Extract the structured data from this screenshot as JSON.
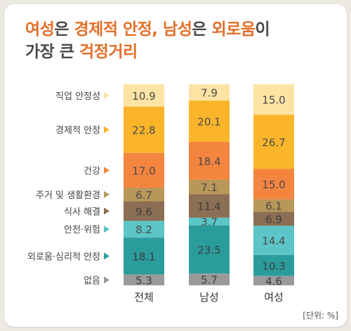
{
  "title": {
    "line1": [
      {
        "text": "여성",
        "hl": true
      },
      {
        "text": "은 ",
        "hl": false
      },
      {
        "text": "경제적 안정, 남성",
        "hl": true
      },
      {
        "text": "은 ",
        "hl": false
      },
      {
        "text": "외로움",
        "hl": true
      },
      {
        "text": "이",
        "hl": false
      }
    ],
    "line2": [
      {
        "text": "가장 큰 ",
        "hl": false
      },
      {
        "text": "걱정거리",
        "hl": true
      }
    ]
  },
  "unit_label": "[단위: %]",
  "chart_data": {
    "type": "bar",
    "stacked": true,
    "categories": [
      "전체",
      "남성",
      "여성"
    ],
    "series": [
      {
        "name": "직업 안정성",
        "color": "#fde3a4",
        "values": [
          10.9,
          7.9,
          15.0
        ]
      },
      {
        "name": "경제적 안정",
        "color": "#fab52a",
        "values": [
          22.8,
          20.1,
          26.7
        ]
      },
      {
        "name": "건강",
        "color": "#f4853f",
        "values": [
          17.0,
          18.4,
          15.0
        ]
      },
      {
        "name": "주거 및 생활환경",
        "color": "#b99758",
        "values": [
          6.7,
          7.1,
          6.1
        ]
      },
      {
        "name": "식사 해결",
        "color": "#8b6e54",
        "values": [
          9.6,
          11.4,
          6.9
        ]
      },
      {
        "name": "안전·위험",
        "color": "#5cc5c8",
        "values": [
          8.2,
          3.7,
          14.4
        ]
      },
      {
        "name": "외로움·심리적 안정",
        "color": "#2b9c9c",
        "values": [
          18.1,
          23.5,
          10.3
        ]
      },
      {
        "name": "없음",
        "color": "#9a9a9a",
        "values": [
          5.3,
          5.7,
          4.6
        ]
      }
    ]
  }
}
